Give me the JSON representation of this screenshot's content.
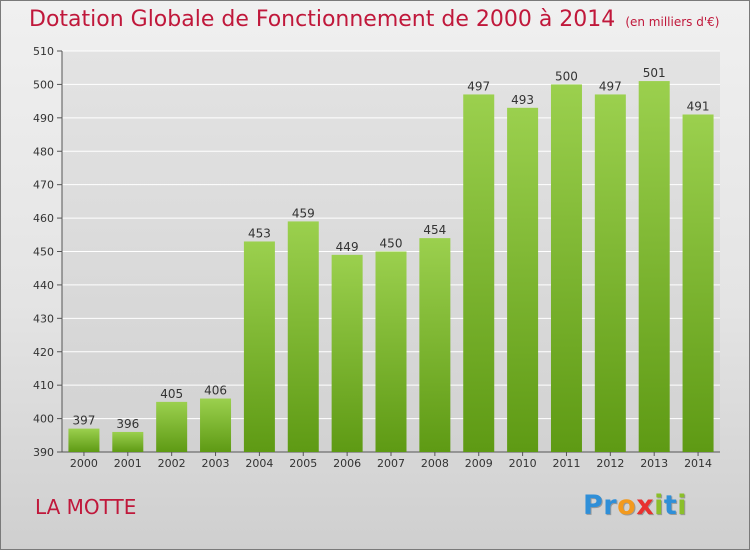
{
  "header": {
    "title": "Dotation Globale de Fonctionnement de 2000 à 2014",
    "unit": "(en milliers d'€)"
  },
  "footer": {
    "town": "LA MOTTE",
    "brand_letters": [
      {
        "ch": "P",
        "color": "#2f8fd8"
      },
      {
        "ch": "r",
        "color": "#2f8fd8"
      },
      {
        "ch": "o",
        "color": "#f39a1e"
      },
      {
        "ch": "x",
        "color": "#e8312f"
      },
      {
        "ch": "i",
        "color": "#8bbf2a"
      },
      {
        "ch": "t",
        "color": "#2f8fd8"
      },
      {
        "ch": "i",
        "color": "#8bbf2a"
      }
    ]
  },
  "colors": {
    "bar_top": "#9bd04e",
    "bar_bottom": "#5e9a14",
    "title": "#c0183b",
    "grid": "#ffffff",
    "axis_text": "#333333"
  },
  "chart_data": {
    "type": "bar",
    "categories": [
      "2000",
      "2001",
      "2002",
      "2003",
      "2004",
      "2005",
      "2006",
      "2007",
      "2008",
      "2009",
      "2010",
      "2011",
      "2012",
      "2013",
      "2014"
    ],
    "values": [
      397,
      396,
      405,
      406,
      453,
      459,
      449,
      450,
      454,
      497,
      493,
      500,
      497,
      501,
      491
    ],
    "ylim": [
      390,
      510
    ],
    "yticks": [
      390,
      400,
      410,
      420,
      430,
      440,
      450,
      460,
      470,
      480,
      490,
      500,
      510
    ],
    "grid": true,
    "data_labels": true
  }
}
